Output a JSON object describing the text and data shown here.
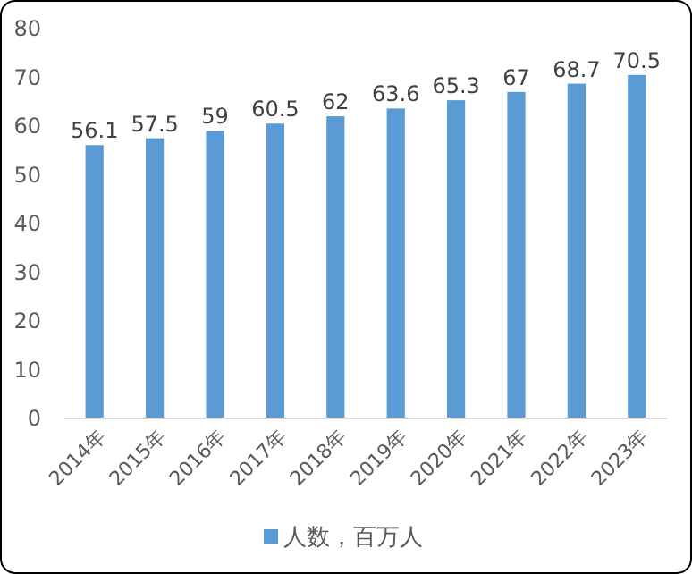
{
  "chart_data": {
    "type": "bar",
    "categories": [
      "2014年",
      "2015年",
      "2016年",
      "2017年",
      "2018年",
      "2019年",
      "2020年",
      "2021年",
      "2022年",
      "2023年"
    ],
    "series": [
      {
        "name": "人数，百万人",
        "color": "#5b9bd5",
        "values": [
          56.1,
          57.5,
          59,
          60.5,
          62,
          63.6,
          65.3,
          67,
          68.7,
          70.5
        ]
      }
    ],
    "ylim": [
      0,
      80
    ],
    "yticks": [
      0,
      10,
      20,
      30,
      40,
      50,
      60,
      70,
      80
    ],
    "grid": false,
    "data_labels": true,
    "legend": "bottom"
  }
}
